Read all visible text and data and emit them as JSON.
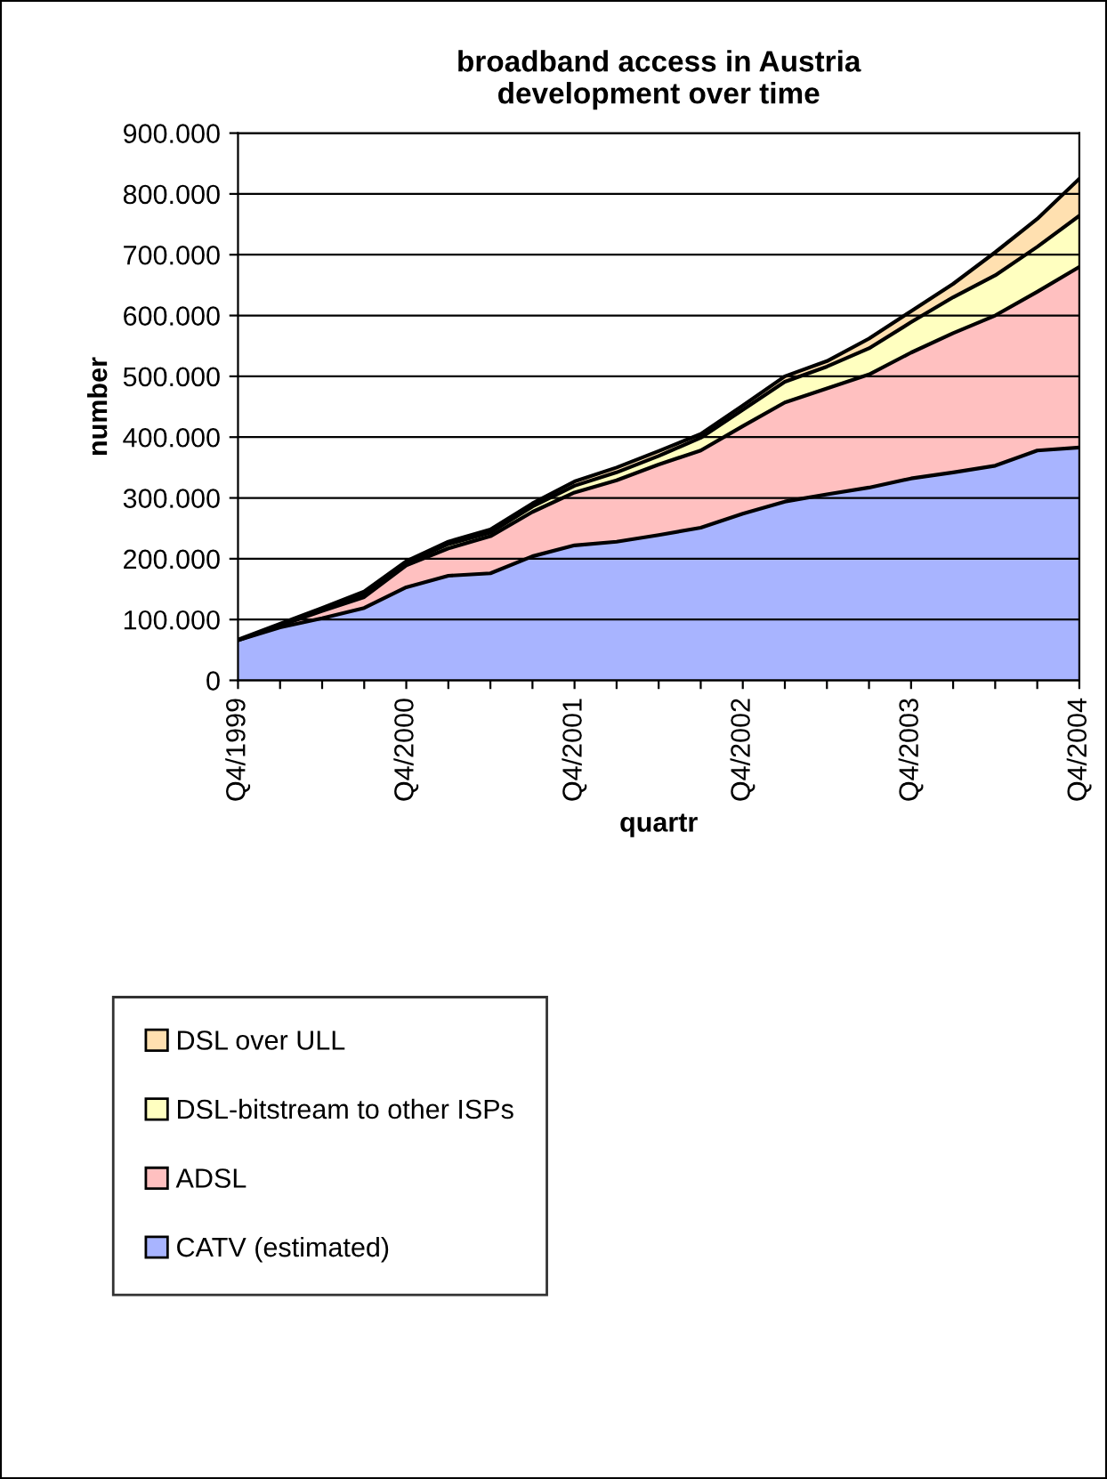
{
  "chart_data": {
    "type": "area",
    "stacked": true,
    "title": "broadband access in Austria\ndevelopment over time",
    "xlabel": "quartr",
    "ylabel": "number",
    "categories": [
      "Q4/1999",
      null,
      null,
      null,
      "Q4/2000",
      null,
      null,
      null,
      "Q4/2001",
      null,
      null,
      null,
      "Q4/2002",
      null,
      null,
      null,
      "Q4/2003",
      null,
      null,
      null,
      "Q4/2004"
    ],
    "series": [
      {
        "name": "CATV (estimated)",
        "color": "#a8b4ff",
        "values": [
          66000,
          87000,
          102000,
          119000,
          153000,
          172000,
          176000,
          204000,
          222000,
          228000,
          239000,
          251000,
          274000,
          294000,
          306000,
          317000,
          332000,
          342000,
          353000,
          378000,
          383000
        ]
      },
      {
        "name": "ADSL",
        "color": "#ffc0c0",
        "values": [
          0,
          3000,
          12000,
          18000,
          36000,
          45000,
          61000,
          73000,
          87000,
          101000,
          116000,
          127000,
          144000,
          163000,
          174000,
          186000,
          207000,
          229000,
          247000,
          261000,
          297000
        ]
      },
      {
        "name": "DSL-bitstream to other ISPs",
        "color": "#ffffc0",
        "values": [
          0,
          1000,
          2000,
          5000,
          4000,
          7000,
          6000,
          9000,
          11000,
          13000,
          14000,
          21000,
          27000,
          34000,
          36000,
          43000,
          50000,
          59000,
          66000,
          74000,
          84000
        ]
      },
      {
        "name": "DSL over ULL",
        "color": "#ffe0b0",
        "values": [
          1000,
          2000,
          3000,
          4000,
          3000,
          4000,
          5000,
          5000,
          7000,
          8000,
          8000,
          6000,
          7000,
          9000,
          9000,
          16000,
          18000,
          22000,
          38000,
          46000,
          61000
        ]
      }
    ],
    "ylim": [
      0,
      900000
    ],
    "yticks": [
      {
        "value": 0,
        "label": "0"
      },
      {
        "value": 100000,
        "label": "100.000"
      },
      {
        "value": 200000,
        "label": "200.000"
      },
      {
        "value": 300000,
        "label": "300.000"
      },
      {
        "value": 400000,
        "label": "400.000"
      },
      {
        "value": 500000,
        "label": "500.000"
      },
      {
        "value": 600000,
        "label": "600.000"
      },
      {
        "value": 700000,
        "label": "700.000"
      },
      {
        "value": 800000,
        "label": "800.000"
      },
      {
        "value": 900000,
        "label": "900.000"
      }
    ],
    "grid": "y",
    "legend": "bottom"
  }
}
